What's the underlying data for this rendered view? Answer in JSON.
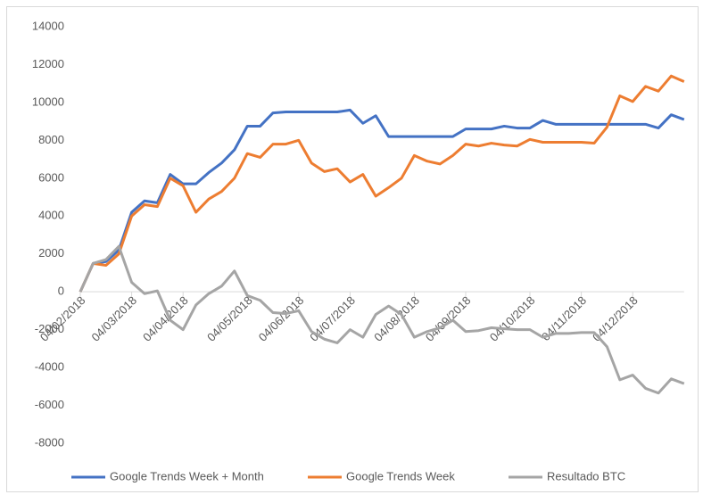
{
  "chart_data": {
    "type": "line",
    "categories": [
      "04/02/2018",
      null,
      null,
      null,
      "04/03/2018",
      null,
      null,
      null,
      "04/04/2018",
      null,
      null,
      null,
      null,
      "04/05/2018",
      null,
      null,
      null,
      "04/06/2018",
      null,
      null,
      null,
      "04/07/2018",
      null,
      null,
      null,
      null,
      "04/08/2018",
      null,
      null,
      null,
      "04/09/2018",
      null,
      null,
      null,
      null,
      "04/10/2018",
      null,
      null,
      null,
      "04/11/2018",
      null,
      null,
      null,
      "04/12/2018",
      null,
      null,
      null,
      null
    ],
    "series": [
      {
        "name": "Google Trends Week + Month",
        "color": "#4472c4",
        "values": [
          0,
          1500,
          1600,
          2200,
          4200,
          4800,
          4700,
          6200,
          5700,
          5700,
          6300,
          6800,
          7500,
          8750,
          8750,
          9450,
          9500,
          9500,
          9500,
          9500,
          9500,
          9600,
          8900,
          9300,
          8200,
          8200,
          8200,
          8200,
          8200,
          8200,
          8600,
          8600,
          8600,
          8750,
          8650,
          8650,
          9050,
          8850,
          8850,
          8850,
          8850,
          8850,
          8850,
          8850,
          8850,
          8650,
          9350,
          9100
        ]
      },
      {
        "name": "Google Trends Week",
        "color": "#ed7d31",
        "values": [
          0,
          1500,
          1400,
          2000,
          4000,
          4600,
          4500,
          6000,
          5600,
          4200,
          4900,
          5300,
          6000,
          7300,
          7100,
          7800,
          7800,
          8000,
          6800,
          6350,
          6500,
          5800,
          6200,
          5050,
          5500,
          6000,
          7200,
          6900,
          6750,
          7200,
          7800,
          7700,
          7850,
          7750,
          7700,
          8050,
          7900,
          7900,
          7900,
          7900,
          7850,
          8700,
          10350,
          10050,
          10850,
          10600,
          11400,
          11100
        ]
      },
      {
        "name": "Resultado BTC",
        "color": "#a5a5a5",
        "values": [
          0,
          1500,
          1700,
          2400,
          500,
          -100,
          50,
          -1500,
          -2000,
          -700,
          -100,
          300,
          1100,
          -200,
          -450,
          -1100,
          -1150,
          -1000,
          -2100,
          -2500,
          -2700,
          -2000,
          -2400,
          -1200,
          -750,
          -1200,
          -2400,
          -2100,
          -1900,
          -1500,
          -2100,
          -2050,
          -1900,
          -1950,
          -2000,
          -2000,
          -2400,
          -2200,
          -2200,
          -2150,
          -2150,
          -2900,
          -4650,
          -4400,
          -5100,
          -5350,
          -4600,
          -4850
        ]
      }
    ],
    "ylim": [
      -8000,
      14000
    ],
    "yticks": [
      -8000,
      -6000,
      -4000,
      -2000,
      0,
      2000,
      4000,
      6000,
      8000,
      10000,
      12000,
      14000
    ],
    "legend": "bottom"
  }
}
